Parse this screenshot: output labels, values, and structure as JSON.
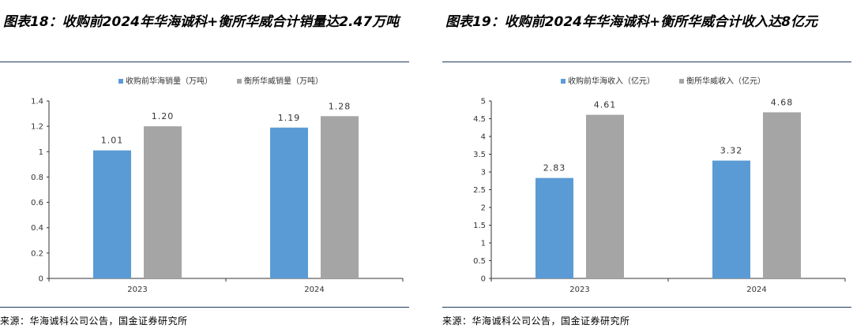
{
  "charts": [
    {
      "title": "图表18：收购前2024年华海诚科+衡所华威合计销量达2.47万吨",
      "source": "来源：华海诚科公司公告，国金证券研究所",
      "chart_data": {
        "type": "bar",
        "categories": [
          "2023",
          "2024"
        ],
        "series": [
          {
            "name": "收购前华海销量（万吨）",
            "values": [
              1.01,
              1.19
            ],
            "labels": [
              "1.01",
              "1.19"
            ],
            "color": "#5b9bd5"
          },
          {
            "name": "衡所华威销量（万吨）",
            "values": [
              1.2,
              1.28
            ],
            "labels": [
              "1.20",
              "1.28"
            ],
            "color": "#a5a5a5"
          }
        ],
        "ylim": [
          0,
          1.4
        ],
        "yticks": [
          "0",
          "0.2",
          "0.4",
          "0.6",
          "0.8",
          "1",
          "1.2",
          "1.4"
        ],
        "legend_position": "top-center",
        "grid": false
      }
    },
    {
      "title": "图表19：收购前2024年华海诚科+衡所华威合计收入达8亿元",
      "source": "来源：华海诚科公司公告，国金证券研究所",
      "chart_data": {
        "type": "bar",
        "categories": [
          "2023",
          "2024"
        ],
        "series": [
          {
            "name": "收购前华海收入（亿元）",
            "values": [
              2.83,
              3.32
            ],
            "labels": [
              "2.83",
              "3.32"
            ],
            "color": "#5b9bd5"
          },
          {
            "name": "衡所华威收入（亿元）",
            "values": [
              4.61,
              4.68
            ],
            "labels": [
              "4.61",
              "4.68"
            ],
            "color": "#a5a5a5"
          }
        ],
        "ylim": [
          0,
          5
        ],
        "yticks": [
          "0",
          "0.5",
          "1",
          "1.5",
          "2",
          "2.5",
          "3",
          "3.5",
          "4",
          "4.5",
          "5"
        ],
        "legend_position": "top-center",
        "grid": false
      }
    }
  ]
}
